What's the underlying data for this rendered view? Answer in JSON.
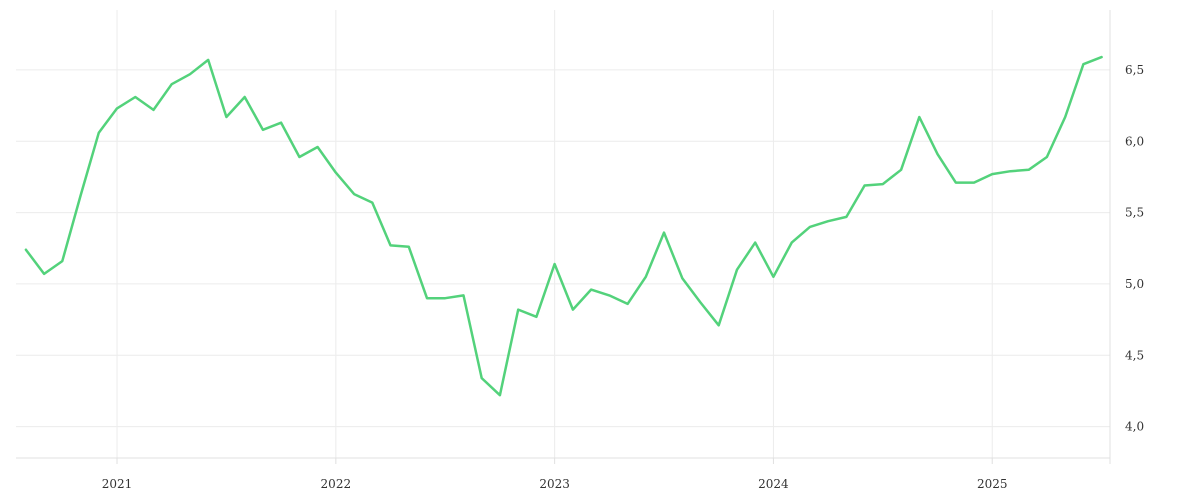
{
  "chart_data": {
    "type": "line",
    "title": "",
    "xlabel": "",
    "ylabel": "",
    "x_tick_labels": [
      "2021",
      "2022",
      "2023",
      "2024",
      "2025"
    ],
    "y_tick_labels": [
      "4,0",
      "4,5",
      "5,0",
      "5,5",
      "6,0",
      "6,5"
    ],
    "y_ticks": [
      4.0,
      4.5,
      5.0,
      5.5,
      6.0,
      6.5
    ],
    "ylim": [
      3.78,
      6.92
    ],
    "xlim": [
      "2020-07-15",
      "2025-07-15"
    ],
    "grid": true,
    "legend": "none",
    "colors": {
      "series": "#53d27b"
    },
    "series": [
      {
        "x": [
          "2020-08",
          "2020-09",
          "2020-10",
          "2020-11",
          "2020-12",
          "2021-01",
          "2021-02",
          "2021-03",
          "2021-04",
          "2021-05",
          "2021-06",
          "2021-07",
          "2021-08",
          "2021-09",
          "2021-10",
          "2021-11",
          "2021-12",
          "2022-01",
          "2022-02",
          "2022-03",
          "2022-04",
          "2022-05",
          "2022-06",
          "2022-07",
          "2022-08",
          "2022-09",
          "2022-10",
          "2022-11",
          "2022-12",
          "2023-01",
          "2023-02",
          "2023-03",
          "2023-04",
          "2023-05",
          "2023-06",
          "2023-07",
          "2023-08",
          "2023-09",
          "2023-10",
          "2023-11",
          "2023-12",
          "2024-01",
          "2024-02",
          "2024-03",
          "2024-04",
          "2024-05",
          "2024-06",
          "2024-07",
          "2024-08",
          "2024-09",
          "2024-10",
          "2024-11",
          "2024-12",
          "2025-01",
          "2025-02",
          "2025-03",
          "2025-04",
          "2025-05",
          "2025-06",
          "2025-07"
        ],
        "y": [
          5.24,
          5.07,
          5.16,
          5.62,
          6.06,
          6.23,
          6.31,
          6.22,
          6.4,
          6.47,
          6.57,
          6.17,
          6.31,
          6.08,
          6.13,
          5.89,
          5.96,
          5.78,
          5.63,
          5.57,
          5.27,
          5.26,
          4.9,
          4.9,
          4.92,
          4.34,
          4.22,
          4.82,
          4.77,
          5.14,
          4.82,
          4.96,
          4.92,
          4.86,
          5.05,
          5.36,
          5.04,
          4.87,
          4.71,
          5.1,
          5.29,
          5.05,
          5.29,
          5.4,
          5.44,
          5.47,
          5.69,
          5.7,
          5.8,
          6.17,
          5.91,
          5.71,
          5.71,
          5.77,
          5.79,
          5.8,
          5.89,
          6.17,
          6.54,
          6.59
        ]
      }
    ]
  }
}
